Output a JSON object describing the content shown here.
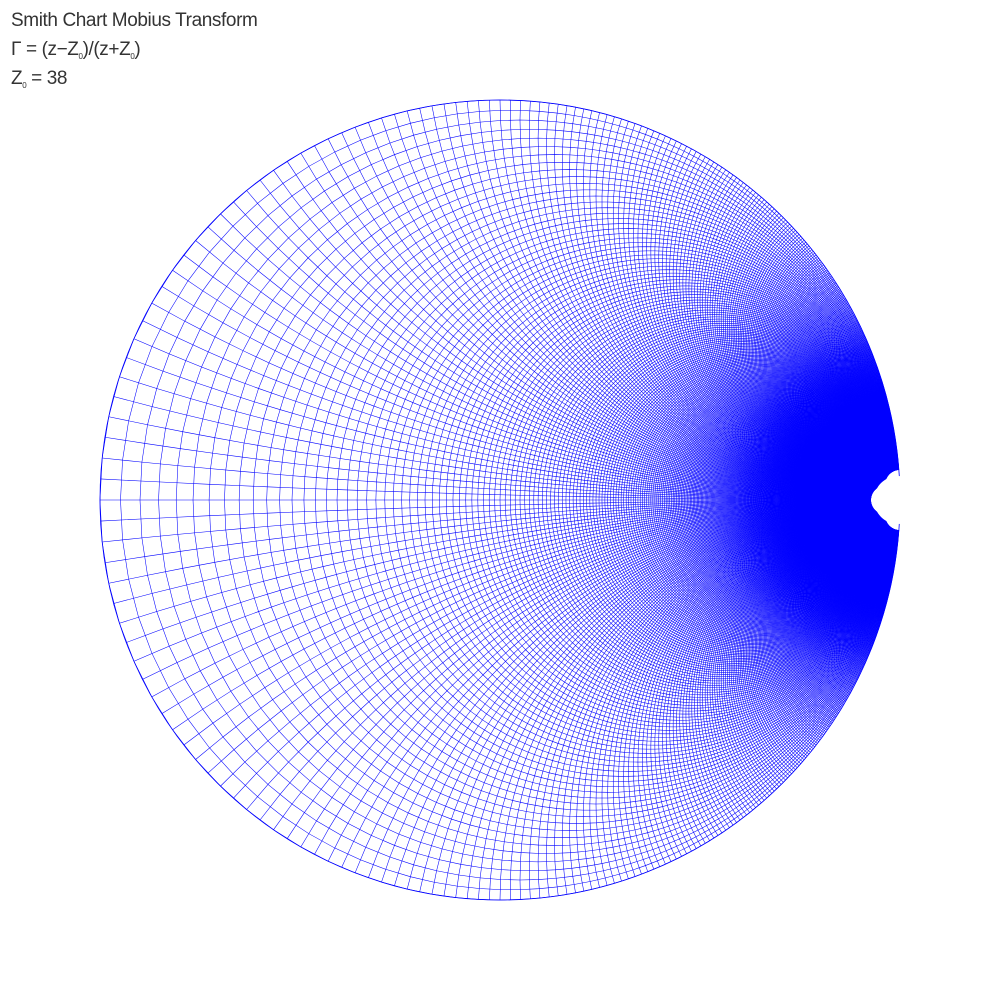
{
  "header": {
    "title": "Smith Chart Mobius Transform",
    "formula": {
      "gamma": "Γ",
      "equals": "=",
      "numerator_open": "(z−Z",
      "sub": "0",
      "numerator_close": ")/(z+Z",
      "denominator_close": ")"
    },
    "z0_line": {
      "symbol": "Z",
      "sub": "0",
      "equals": "=",
      "value": "38"
    }
  },
  "chart_data": {
    "type": "diagram",
    "transform": "Γ = (z−Z0)/(z+Z0)",
    "z0": 38,
    "line_color": "#0000ff",
    "background": "#ffffff",
    "grid_lines": "constant-resistance and constant-reactance contours of a rectangular z-plane grid",
    "boundary": "unit circle |Γ| = 1"
  }
}
